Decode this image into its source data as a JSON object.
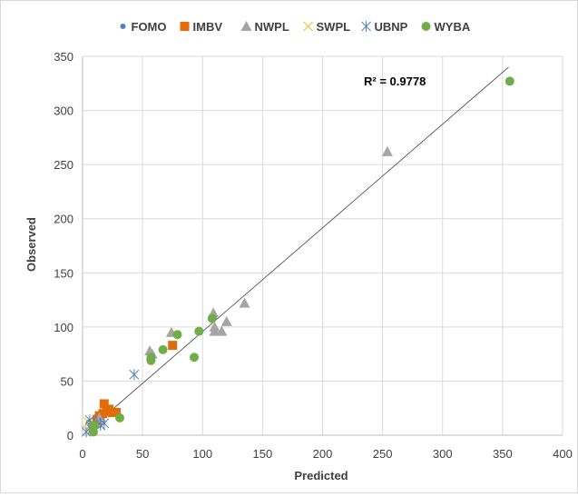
{
  "chart_data": {
    "type": "scatter",
    "title": "",
    "xlabel": "Predicted",
    "ylabel": "Observed",
    "xlim": [
      0,
      400
    ],
    "ylim": [
      0,
      350
    ],
    "x_ticks": [
      0,
      50,
      100,
      150,
      200,
      250,
      300,
      350,
      400
    ],
    "y_ticks": [
      0,
      50,
      100,
      150,
      200,
      250,
      300,
      350
    ],
    "grid": true,
    "legend_position": "top",
    "annotation": "R² = 0.9778",
    "trendline": {
      "x": [
        0,
        355
      ],
      "y": [
        0,
        340
      ]
    },
    "series": [
      {
        "name": "FOMO",
        "marker": "dot",
        "color": "#4f81bd",
        "points": [
          [
            5,
            12
          ],
          [
            8,
            10
          ],
          [
            11,
            17
          ],
          [
            13,
            15
          ]
        ]
      },
      {
        "name": "IMBV",
        "marker": "square",
        "color": "#e36c0a",
        "points": [
          [
            18,
            29
          ],
          [
            20,
            22
          ],
          [
            22,
            24
          ],
          [
            25,
            21
          ],
          [
            28,
            21
          ],
          [
            17,
            20
          ],
          [
            14,
            18
          ],
          [
            75,
            83
          ],
          [
            12,
            14
          ]
        ]
      },
      {
        "name": "NWPL",
        "marker": "triangle",
        "color": "#a5a5a5",
        "points": [
          [
            254,
            262
          ],
          [
            135,
            122
          ],
          [
            120,
            105
          ],
          [
            109,
            113
          ],
          [
            110,
            100
          ],
          [
            110,
            96
          ],
          [
            116,
            96
          ],
          [
            74,
            95
          ],
          [
            56,
            78
          ],
          [
            58,
            75
          ],
          [
            14,
            16
          ],
          [
            7,
            8
          ]
        ]
      },
      {
        "name": "SWPL",
        "marker": "x",
        "color": "#f5c242",
        "points": [
          [
            4,
            4
          ],
          [
            6,
            7
          ],
          [
            10,
            10
          ],
          [
            5,
            12
          ]
        ]
      },
      {
        "name": "UBNP",
        "marker": "star",
        "color": "#4f81bd",
        "points": [
          [
            43,
            56
          ],
          [
            18,
            11
          ],
          [
            6,
            14
          ],
          [
            12,
            12
          ],
          [
            3,
            3
          ],
          [
            8,
            5
          ],
          [
            15,
            9
          ]
        ]
      },
      {
        "name": "WYBA",
        "marker": "circle",
        "color": "#70ad47",
        "points": [
          [
            356,
            327
          ],
          [
            108,
            108
          ],
          [
            97,
            96
          ],
          [
            79,
            93
          ],
          [
            67,
            79
          ],
          [
            57,
            72
          ],
          [
            57,
            69
          ],
          [
            93,
            72
          ],
          [
            31,
            16
          ],
          [
            9,
            3
          ],
          [
            10,
            9
          ]
        ]
      }
    ]
  }
}
